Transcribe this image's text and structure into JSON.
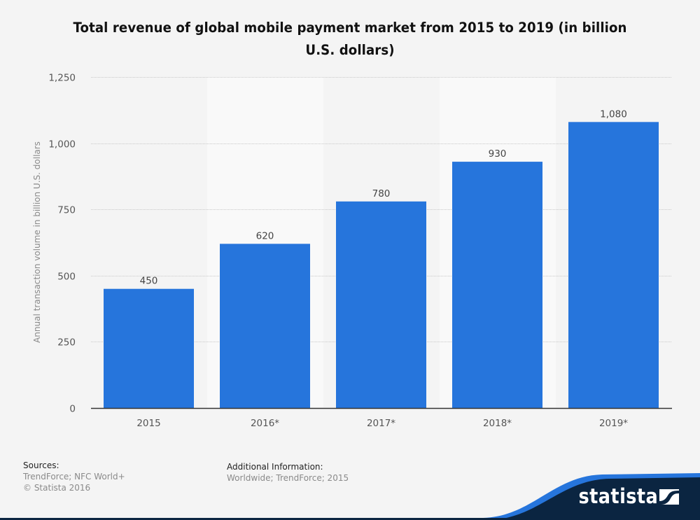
{
  "chart_data": {
    "type": "bar",
    "title": "Total revenue of global mobile payment market from 2015 to 2019 (in billion U.S. dollars)",
    "title_lines": [
      "Total revenue of global mobile payment market from 2015 to 2019 (in billion",
      "U.S. dollars)"
    ],
    "xlabel": "",
    "ylabel": "Annual transaction volume in billion U.S. dollars",
    "categories": [
      "2015",
      "2016*",
      "2017*",
      "2018*",
      "2019*"
    ],
    "values": [
      450,
      620,
      780,
      930,
      1080
    ],
    "data_labels": [
      "450",
      "620",
      "780",
      "930",
      "1,080"
    ],
    "ylim": [
      0,
      1250
    ],
    "yticks": [
      0,
      250,
      500,
      750,
      1000,
      1250
    ],
    "ytick_labels": [
      "0",
      "250",
      "500",
      "750",
      "1,000",
      "1,250"
    ],
    "grid": true,
    "legend": "none",
    "bar_color": "#2675dc"
  },
  "footer": {
    "sources_heading": "Sources:",
    "sources_line1": "TrendForce; NFC World+",
    "sources_line2": "© Statista 2016",
    "additional_heading": "Additional Information:",
    "additional_value": "Worldwide; TrendForce; 2015"
  },
  "brand": {
    "name": "statista",
    "icon": "statista-logo-icon",
    "dark_color": "#0b2541",
    "accent_color": "#2675dc"
  }
}
